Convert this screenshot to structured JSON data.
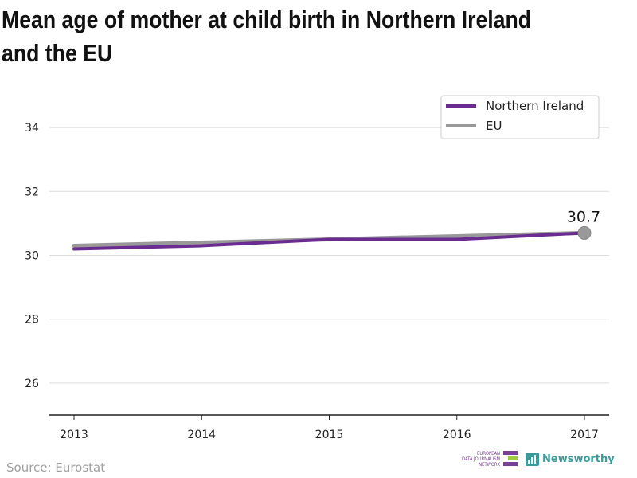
{
  "header": {
    "title": "Mean age of mother at child birth in Northern Ireland and the EU"
  },
  "footer": {
    "source": "Source: Eurostat",
    "ejn_logo_lines": [
      "EUROPEAN",
      "DATA JOURNALISM",
      "NETWORK"
    ],
    "newsworthy_label": "Newsworthy"
  },
  "chart_data": {
    "type": "line",
    "title": "Mean age of mother at child birth in Northern Ireland and the EU",
    "xlabel": "",
    "ylabel": "",
    "x": [
      "2013",
      "2014",
      "2015",
      "2016",
      "2017"
    ],
    "ylim": [
      25,
      35
    ],
    "yticks": [
      "26",
      "28",
      "30",
      "32",
      "34"
    ],
    "grid": "horizontal",
    "legend_position": "top-right",
    "series": [
      {
        "name": "Northern Ireland",
        "color": "#6b2c91",
        "values": [
          30.2,
          30.3,
          30.5,
          30.5,
          30.7
        ]
      },
      {
        "name": "EU",
        "color": "#999999",
        "values": [
          30.3,
          30.4,
          30.5,
          30.6,
          30.7
        ]
      }
    ],
    "annotation": {
      "label": "30.7",
      "x": "2017",
      "y": 30.7
    }
  }
}
